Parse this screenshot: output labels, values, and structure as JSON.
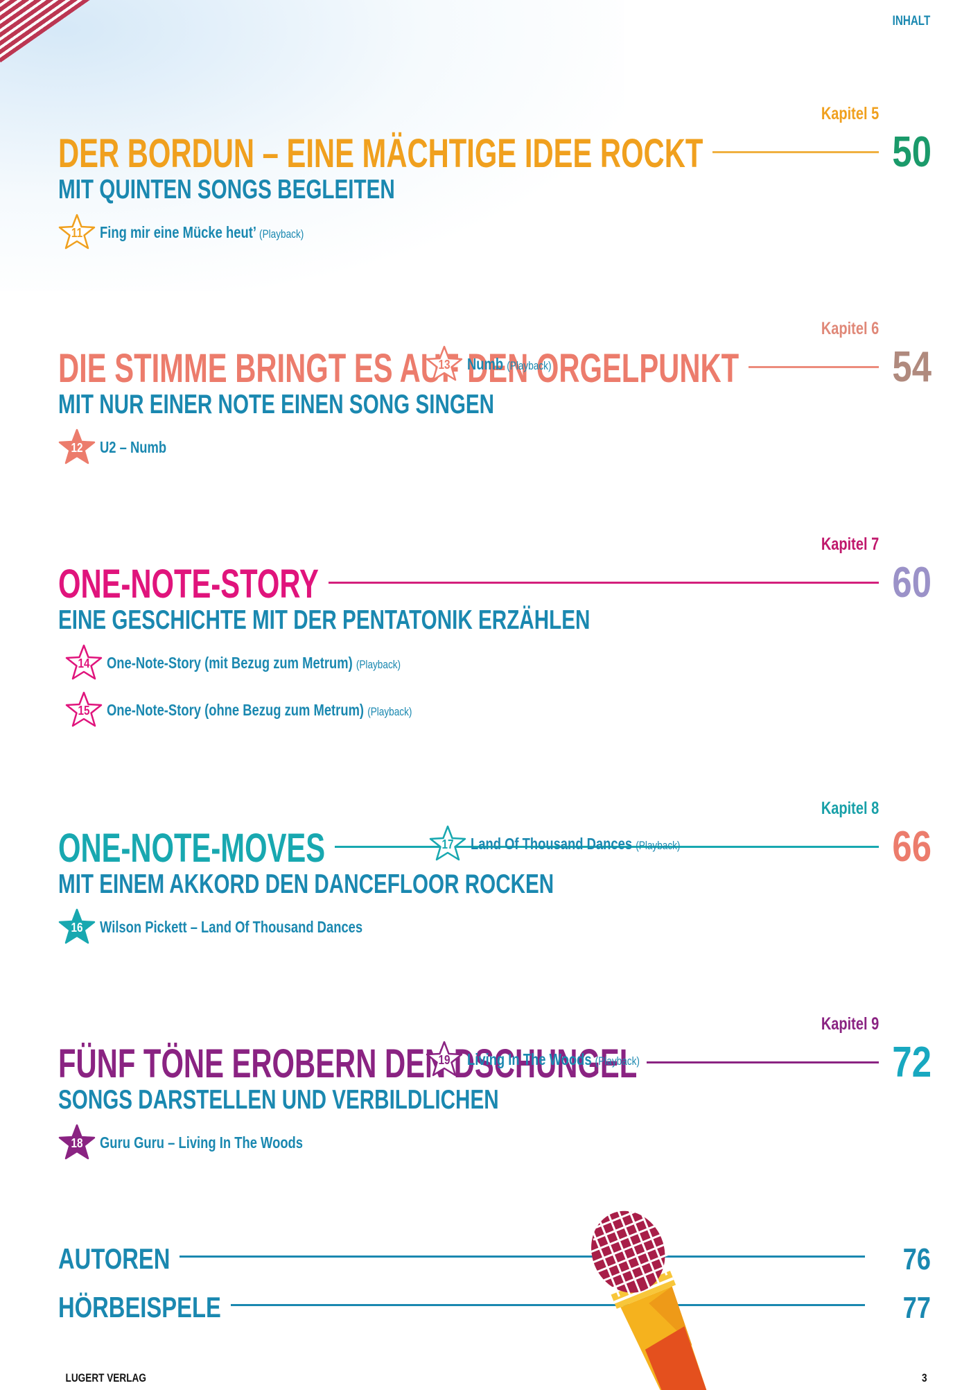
{
  "header": {
    "section_label": "INHALT"
  },
  "sections": [
    {
      "kapitel": "Kapitel 5",
      "title": "DER BORDUN – EINE MÄCHTIGE IDEE ROCKT",
      "subtitle": "MIT QUINTEN SONGS BEGLEITEN",
      "page": "50",
      "title_color": "#f0a01e",
      "page_color": "#1a9a6a",
      "line_color": "#f0b040",
      "kapitel_color": "#f0a01e",
      "songs": [
        {
          "number": "11",
          "title": "Fing mir eine Mücke heut’",
          "note": "(Playback)",
          "filled": false
        }
      ]
    },
    {
      "kapitel": "Kapitel 6",
      "title": "DIE STIMME BRINGT ES AUF DEN ORGELPUNKT",
      "subtitle": "MIT NUR EINER NOTE EINEN SONG SINGEN",
      "page": "54",
      "title_color": "#ec7c6c",
      "page_color": "#b08a7e",
      "line_color": "#ec8c7c",
      "kapitel_color": "#e08878",
      "songs": [
        {
          "number": "12",
          "title": "U2 – Numb",
          "note": "",
          "filled": true
        },
        {
          "number": "13",
          "title": "Numb",
          "note": "(Playback)",
          "filled": false
        }
      ]
    },
    {
      "kapitel": "Kapitel 7",
      "title": "ONE-NOTE-STORY",
      "subtitle": "EINE GESCHICHTE MIT DER PENTATONIK ERZÄHLEN",
      "page": "60",
      "title_color": "#e0147c",
      "page_color": "#9b92c8",
      "line_color": "#d4207c",
      "kapitel_color": "#c0186c",
      "songs": [
        {
          "number": "14",
          "title": "One-Note-Story (mit Bezug zum Metrum)",
          "note": "(Playback)",
          "filled": false
        },
        {
          "number": "15",
          "title": "One-Note-Story (ohne Bezug zum Metrum)",
          "note": "(Playback)",
          "filled": false
        }
      ]
    },
    {
      "kapitel": "Kapitel 8",
      "title": "ONE-NOTE-MOVES",
      "subtitle": "MIT EINEM AKKORD DEN DANCEFLOOR ROCKEN",
      "page": "66",
      "title_color": "#18a8b0",
      "page_color": "#ec7c6c",
      "line_color": "#18a8b0",
      "kapitel_color": "#18a0a8",
      "songs": [
        {
          "number": "16",
          "title": "Wilson Pickett – Land Of Thousand Dances",
          "note": "",
          "filled": true
        },
        {
          "number": "17",
          "title": "Land Of Thousand Dances",
          "note": "(Playback)",
          "filled": false
        }
      ]
    },
    {
      "kapitel": "Kapitel 9",
      "title": "FÜNF TÖNE EROBERN DEN DSCHUNGEL",
      "subtitle": "SONGS DARSTELLEN UND VERBILDLICHEN",
      "page": "72",
      "title_color": "#8a2382",
      "page_color": "#18a8c0",
      "line_color": "#8a2382",
      "kapitel_color": "#8a2382",
      "songs": [
        {
          "number": "18",
          "title": "Guru Guru – Living In The Woods",
          "note": "",
          "filled": true
        },
        {
          "number": "19",
          "title": "Living In The Woods",
          "note": "(Playback)",
          "filled": false
        }
      ]
    }
  ],
  "appendix": [
    {
      "label": "AUTOREN",
      "page": "76"
    },
    {
      "label": "HÖRBEISPELE",
      "page": "77"
    }
  ],
  "footer": {
    "publisher": "LUGERT VERLAG",
    "page_number": "3"
  }
}
